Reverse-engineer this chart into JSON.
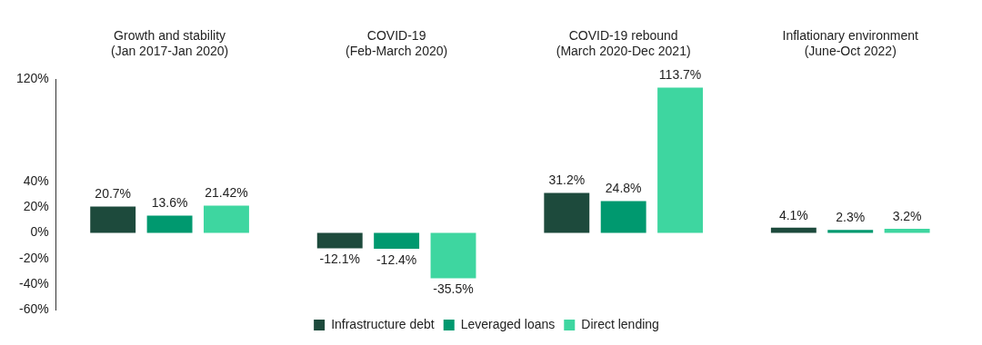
{
  "chart_data": {
    "type": "bar",
    "categories": [
      "Growth and stability\n(Jan 2017-Jan 2020)",
      "COVID-19\n(Feb-March 2020)",
      "COVID-19 rebound\n(March 2020-Dec 2021)",
      "Inflationary environment\n(June-Oct 2022)"
    ],
    "series": [
      {
        "name": "Infrastructure debt",
        "color": "#1d4a3c",
        "values": [
          20.7,
          -12.1,
          31.2,
          4.1
        ],
        "value_labels": [
          "20.7%",
          "-12.1%",
          "31.2%",
          "4.1%"
        ]
      },
      {
        "name": "Leveraged loans",
        "color": "#00996f",
        "values": [
          13.6,
          -12.4,
          24.8,
          2.3
        ],
        "value_labels": [
          "13.6%",
          "-12.4%",
          "24.8%",
          "2.3%"
        ]
      },
      {
        "name": "Direct lending",
        "color": "#3ed6a0",
        "values": [
          21.42,
          -35.5,
          113.7,
          3.2
        ],
        "value_labels": [
          "21.42%",
          "-35.5%",
          "113.7%",
          "3.2%"
        ]
      }
    ],
    "ylim": [
      -60,
      120
    ],
    "yticks": [
      {
        "value": -60,
        "label": "-60%"
      },
      {
        "value": -40,
        "label": "-40%"
      },
      {
        "value": -20,
        "label": "-20%"
      },
      {
        "value": 0,
        "label": "0%"
      },
      {
        "value": 20,
        "label": "20%"
      },
      {
        "value": 40,
        "label": "40%"
      },
      {
        "value": 120,
        "label": "120%"
      }
    ],
    "grid": false,
    "legend": "bottom"
  }
}
